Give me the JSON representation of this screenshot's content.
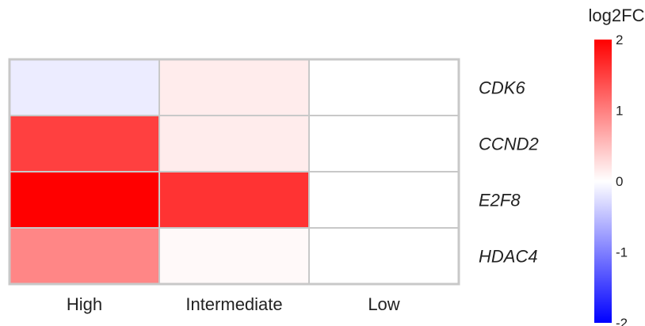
{
  "chart_data": {
    "type": "heatmap",
    "title": "",
    "columns": [
      "High",
      "Intermediate",
      "Low"
    ],
    "rows": [
      "CDK6",
      "CCND2",
      "E2F8",
      "HDAC4"
    ],
    "values": [
      [
        -0.15,
        0.15,
        0.0
      ],
      [
        1.5,
        0.15,
        0.0
      ],
      [
        2.0,
        1.6,
        0.0
      ],
      [
        0.95,
        0.05,
        0.0
      ]
    ],
    "legend": {
      "title": "log2FC",
      "range": [
        -2,
        2
      ],
      "ticks": [
        "2",
        "1",
        "0",
        "-1",
        "-2"
      ],
      "tick_values": [
        2,
        1,
        0,
        -1,
        -2
      ],
      "placement": "right"
    },
    "colors": {
      "high": "#ff0000",
      "mid": "#ffffff",
      "low": "#0000ff",
      "grid": "#c8c8c8"
    }
  }
}
